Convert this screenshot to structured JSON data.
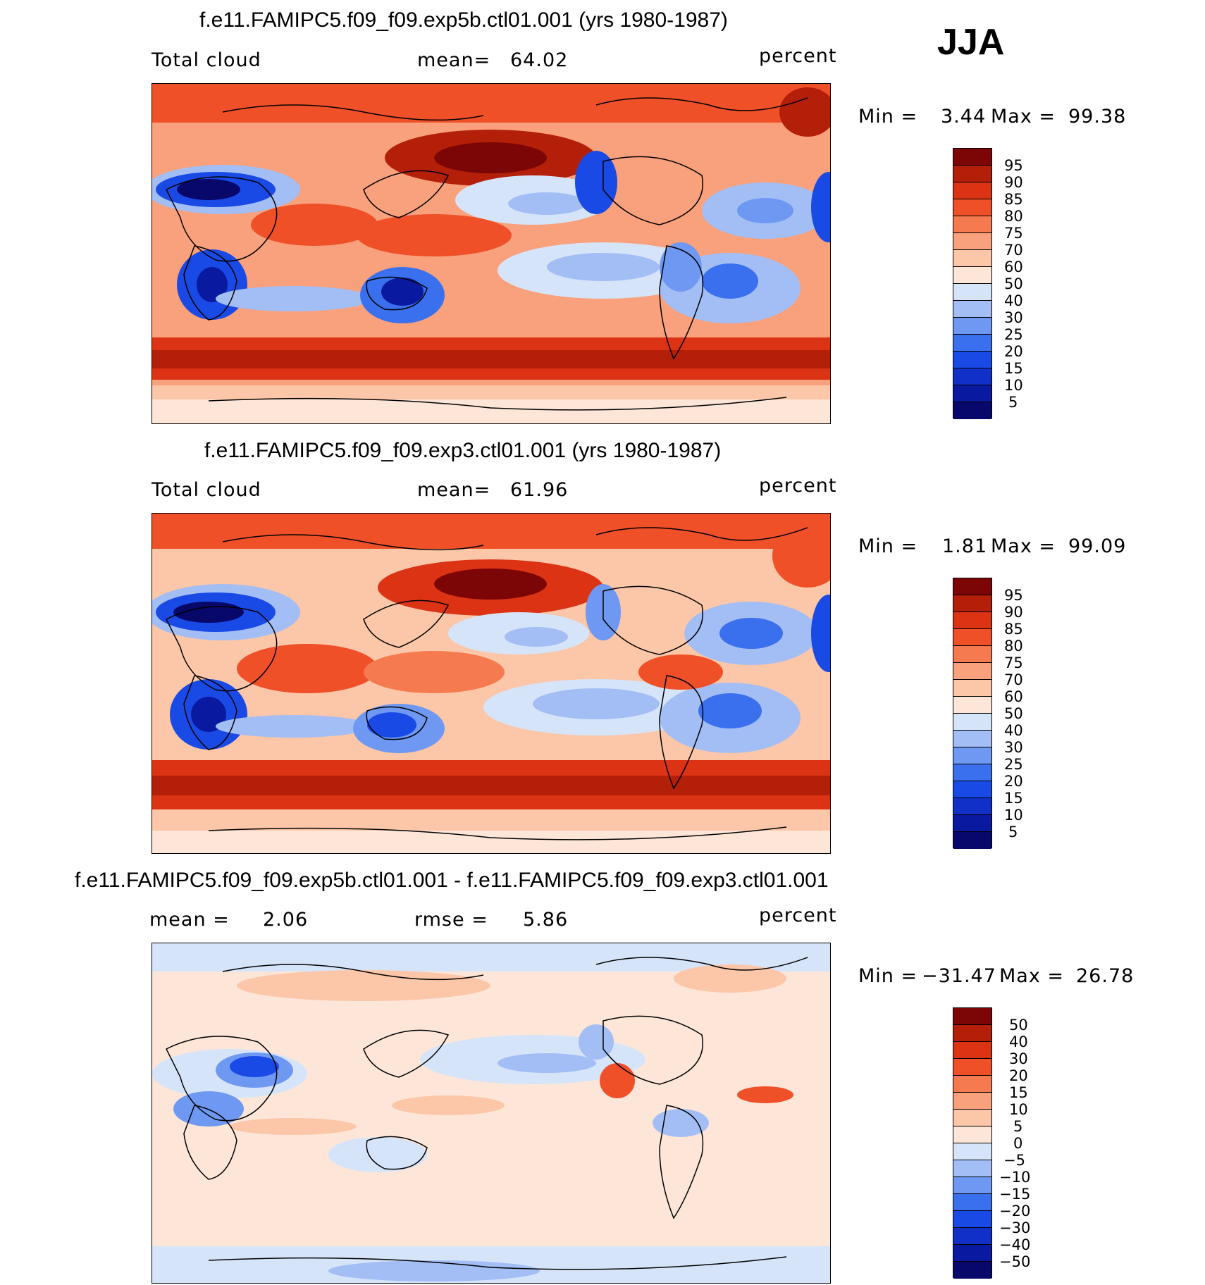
{
  "season": "JJA",
  "palette_abs": [
    "#08086b",
    "#0a1aa0",
    "#1030c8",
    "#1a4ae6",
    "#3a70ee",
    "#6e98f2",
    "#a3bef5",
    "#d6e4fa",
    "#fde6d8",
    "#fcc6a8",
    "#f9a07c",
    "#f57a50",
    "#ef5028",
    "#db3314",
    "#b31f08",
    "#7c0606"
  ],
  "palette_diff": [
    "#08086b",
    "#0a1aa0",
    "#1030c8",
    "#1a4ae6",
    "#3a70ee",
    "#6e98f2",
    "#a3bef5",
    "#d6e4fa",
    "#fde6d8",
    "#fcc6a8",
    "#f9a07c",
    "#f57a50",
    "#ef5028",
    "#db3314",
    "#b31f08",
    "#7c0606"
  ],
  "panels": [
    {
      "title": "f.e11.FAMIPC5.f09_f09.exp5b.ctl01.001 (yrs 1980-1987)",
      "left_label": "Total cloud",
      "mid_label": "mean=",
      "mid_value": "64.02",
      "units": "percent",
      "min_label": "Min =",
      "min_value": "3.44",
      "max_label": "Max =",
      "max_value": "99.38",
      "levels": [
        "95",
        "90",
        "85",
        "80",
        "75",
        "70",
        "60",
        "50",
        "40",
        "30",
        "25",
        "20",
        "15",
        "10",
        "5"
      ]
    },
    {
      "title": "f.e11.FAMIPC5.f09_f09.exp3.ctl01.001 (yrs 1980-1987)",
      "left_label": "Total cloud",
      "mid_label": "mean=",
      "mid_value": "61.96",
      "units": "percent",
      "min_label": "Min =",
      "min_value": "1.81",
      "max_label": "Max =",
      "max_value": "99.09",
      "levels": [
        "95",
        "90",
        "85",
        "80",
        "75",
        "70",
        "60",
        "50",
        "40",
        "30",
        "25",
        "20",
        "15",
        "10",
        "5"
      ]
    },
    {
      "title": "f.e11.FAMIPC5.f09_f09.exp5b.ctl01.001 - f.e11.FAMIPC5.f09_f09.exp3.ctl01.001",
      "left_label": "mean =",
      "left_value": "2.06",
      "mid_label": "rmse =",
      "mid_value": "5.86",
      "units": "percent",
      "min_label": "Min =",
      "min_value": "−31.47",
      "max_label": "Max =",
      "max_value": "26.78",
      "levels": [
        "50",
        "40",
        "30",
        "20",
        "15",
        "10",
        "5",
        "0",
        "−5",
        "−10",
        "−15",
        "−20",
        "−30",
        "−40",
        "−50"
      ]
    }
  ]
}
